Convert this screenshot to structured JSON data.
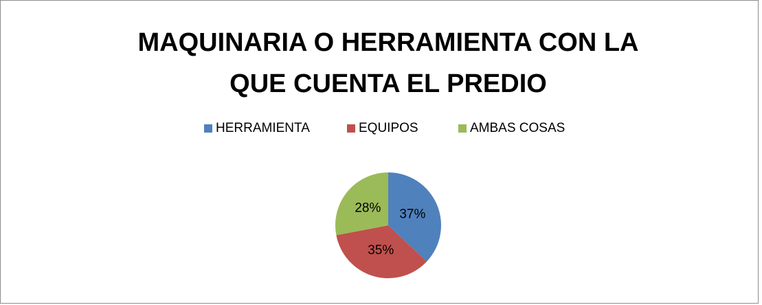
{
  "chart_data": {
    "type": "pie",
    "title": "MAQUINARIA O HERRAMIENTA CON LA QUE CUENTA EL PREDIO",
    "categories": [
      "HERRAMIENTA",
      "EQUIPOS",
      "AMBAS COSAS"
    ],
    "values": [
      37,
      35,
      28
    ],
    "value_labels": [
      "37%",
      "35%",
      "28%"
    ],
    "colors": [
      "#4f81bd",
      "#c0504d",
      "#9bbb59"
    ],
    "legend": "top"
  }
}
